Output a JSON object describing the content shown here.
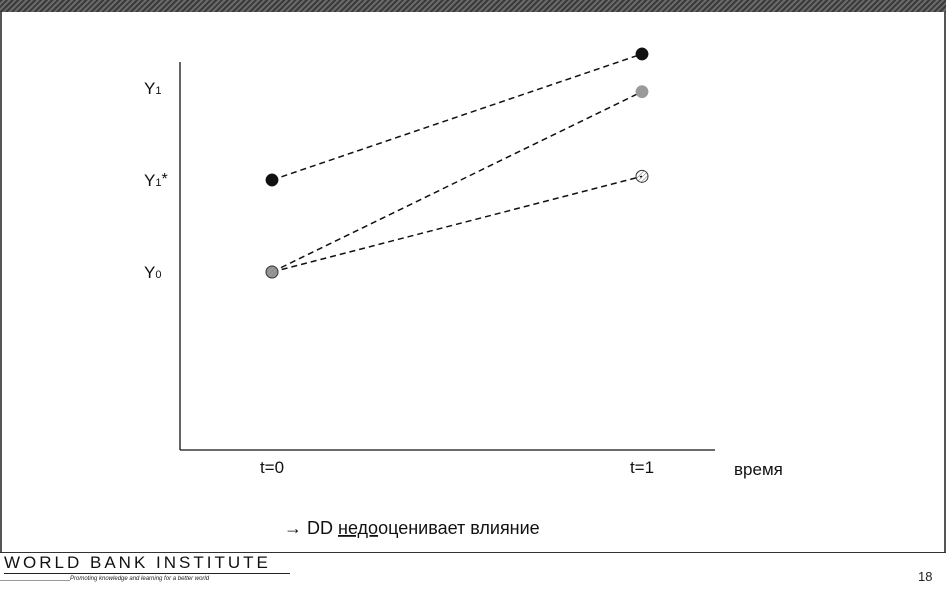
{
  "chart_data": {
    "type": "line",
    "x": [
      "t=0",
      "t=1"
    ],
    "xlabel": "время",
    "y_tick_labels": [
      "Y0",
      "Y1*",
      "Y1"
    ],
    "y_tick_values": {
      "Y0": 0,
      "Y1*": 1,
      "Y1": 2
    },
    "ylim": [
      -2,
      2.5
    ],
    "series": [
      {
        "values": [
          1,
          2.37
        ],
        "color": "#111111",
        "marker": "filled-dark",
        "linestyle": "dashed"
      },
      {
        "values": [
          0,
          1.96
        ],
        "color": "#9a9a9a",
        "marker": "filled-gray",
        "linestyle": "dashed"
      },
      {
        "values": [
          0,
          1.04
        ],
        "color": "#ffffff",
        "marker": "hatched-open",
        "linestyle": "dashed"
      }
    ],
    "annotation": {
      "arrow": "→",
      "prefix": "DD ",
      "underlined": "недо",
      "rest": "оценивает влияние"
    }
  },
  "footer": {
    "org": "WORLD BANK INSTITUTE",
    "tagline": "Promoting knowledge and learning for a better world",
    "page_number": "18"
  }
}
